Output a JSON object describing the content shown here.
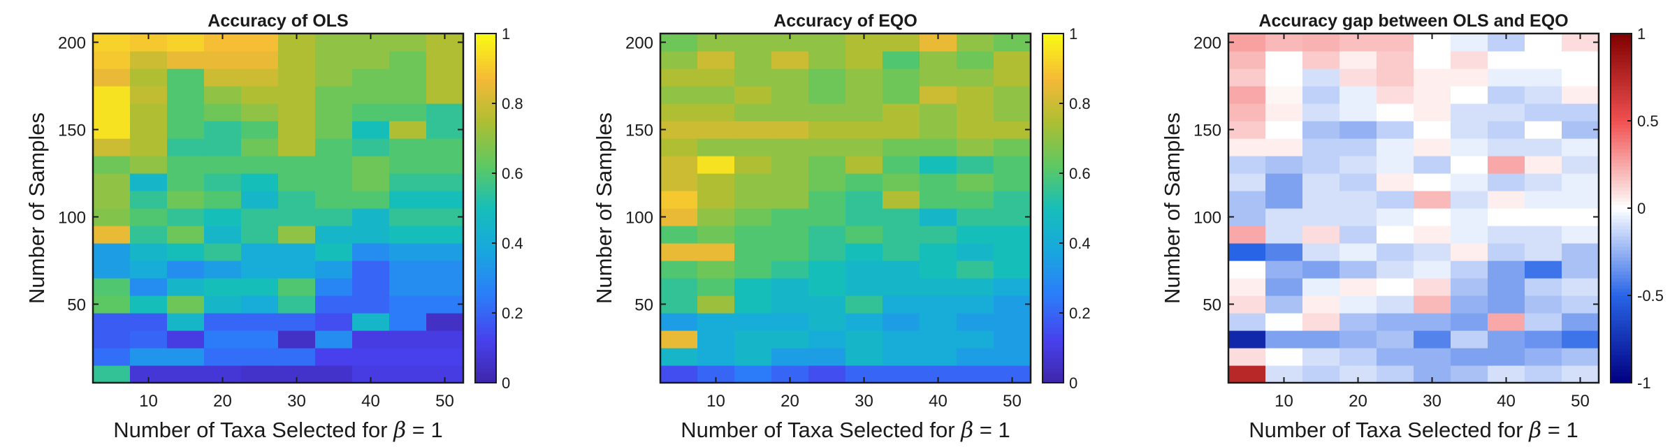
{
  "chart_data": [
    {
      "type": "heatmap",
      "title": "Accuracy of OLS",
      "xlabel": "Number of Taxa Selected for",
      "xlabel_symbol": "β",
      "xlabel_suffix": " = 1",
      "ylabel": "Number of Samples",
      "x_ticks": [
        "10",
        "20",
        "30",
        "40",
        "50"
      ],
      "y_ticks": [
        "50",
        "100",
        "150",
        "200"
      ],
      "colorbar_ticks": [
        "0",
        "0.2",
        "0.4",
        "0.6",
        "0.8",
        "1"
      ],
      "colormap": "parula",
      "clim": [
        0,
        1
      ],
      "x_centers": [
        5,
        10,
        15,
        20,
        25,
        30,
        35,
        40,
        45,
        50
      ],
      "y_centers": [
        10,
        20,
        30,
        40,
        50,
        60,
        70,
        80,
        90,
        100,
        110,
        120,
        130,
        140,
        150,
        160,
        170,
        180,
        190,
        200
      ],
      "grid": false,
      "values": [
        [
          0.55,
          0.08,
          0.08,
          0.08,
          0.06,
          0.06,
          0.06,
          0.1,
          0.1,
          0.1
        ],
        [
          0.22,
          0.32,
          0.32,
          0.22,
          0.22,
          0.22,
          0.12,
          0.12,
          0.12,
          0.12
        ],
        [
          0.18,
          0.2,
          0.1,
          0.25,
          0.25,
          0.05,
          0.3,
          0.1,
          0.1,
          0.1
        ],
        [
          0.18,
          0.18,
          0.45,
          0.2,
          0.2,
          0.2,
          0.15,
          0.45,
          0.25,
          0.05
        ],
        [
          0.62,
          0.5,
          0.65,
          0.45,
          0.4,
          0.55,
          0.2,
          0.2,
          0.25,
          0.25
        ],
        [
          0.6,
          0.3,
          0.45,
          0.5,
          0.5,
          0.6,
          0.28,
          0.2,
          0.3,
          0.3
        ],
        [
          0.35,
          0.4,
          0.3,
          0.35,
          0.4,
          0.4,
          0.35,
          0.2,
          0.3,
          0.3
        ],
        [
          0.35,
          0.45,
          0.5,
          0.55,
          0.4,
          0.4,
          0.5,
          0.3,
          0.35,
          0.35
        ],
        [
          0.85,
          0.55,
          0.65,
          0.45,
          0.55,
          0.7,
          0.45,
          0.45,
          0.5,
          0.5
        ],
        [
          0.68,
          0.6,
          0.55,
          0.5,
          0.55,
          0.55,
          0.55,
          0.45,
          0.55,
          0.55
        ],
        [
          0.7,
          0.55,
          0.65,
          0.6,
          0.45,
          0.55,
          0.6,
          0.6,
          0.5,
          0.5
        ],
        [
          0.7,
          0.45,
          0.6,
          0.55,
          0.5,
          0.6,
          0.6,
          0.65,
          0.55,
          0.55
        ],
        [
          0.65,
          0.7,
          0.6,
          0.6,
          0.6,
          0.6,
          0.6,
          0.65,
          0.6,
          0.6
        ],
        [
          0.8,
          0.75,
          0.55,
          0.55,
          0.65,
          0.75,
          0.6,
          0.55,
          0.6,
          0.6
        ],
        [
          0.95,
          0.75,
          0.6,
          0.55,
          0.6,
          0.75,
          0.65,
          0.5,
          0.75,
          0.55
        ],
        [
          0.95,
          0.75,
          0.6,
          0.65,
          0.7,
          0.75,
          0.65,
          0.6,
          0.6,
          0.55
        ],
        [
          0.95,
          0.78,
          0.6,
          0.7,
          0.75,
          0.75,
          0.65,
          0.65,
          0.65,
          0.75
        ],
        [
          0.85,
          0.75,
          0.6,
          0.8,
          0.8,
          0.75,
          0.7,
          0.65,
          0.65,
          0.75
        ],
        [
          0.9,
          0.8,
          0.85,
          0.85,
          0.85,
          0.75,
          0.7,
          0.7,
          0.65,
          0.75
        ],
        [
          0.92,
          0.9,
          0.92,
          0.88,
          0.88,
          0.75,
          0.7,
          0.7,
          0.7,
          0.75
        ]
      ]
    },
    {
      "type": "heatmap",
      "title": "Accuracy of EQO",
      "xlabel": "Number of Taxa Selected for",
      "xlabel_symbol": "β",
      "xlabel_suffix": " = 1",
      "ylabel": "Number of Samples",
      "x_ticks": [
        "10",
        "20",
        "30",
        "40",
        "50"
      ],
      "y_ticks": [
        "50",
        "100",
        "150",
        "200"
      ],
      "colorbar_ticks": [
        "0",
        "0.2",
        "0.4",
        "0.6",
        "0.8",
        "1"
      ],
      "colormap": "parula",
      "clim": [
        0,
        1
      ],
      "x_centers": [
        5,
        10,
        15,
        20,
        25,
        30,
        35,
        40,
        45,
        50
      ],
      "y_centers": [
        10,
        20,
        30,
        40,
        50,
        60,
        70,
        80,
        90,
        100,
        110,
        120,
        130,
        140,
        150,
        160,
        170,
        180,
        190,
        200
      ],
      "grid": false,
      "values": [
        [
          0.15,
          0.2,
          0.25,
          0.2,
          0.15,
          0.2,
          0.2,
          0.2,
          0.2,
          0.2
        ],
        [
          0.45,
          0.4,
          0.45,
          0.35,
          0.35,
          0.45,
          0.4,
          0.4,
          0.35,
          0.35
        ],
        [
          0.85,
          0.4,
          0.45,
          0.45,
          0.4,
          0.45,
          0.4,
          0.4,
          0.4,
          0.35
        ],
        [
          0.35,
          0.4,
          0.4,
          0.4,
          0.45,
          0.4,
          0.35,
          0.4,
          0.35,
          0.35
        ],
        [
          0.55,
          0.72,
          0.5,
          0.45,
          0.45,
          0.55,
          0.4,
          0.4,
          0.4,
          0.35
        ],
        [
          0.55,
          0.6,
          0.5,
          0.45,
          0.5,
          0.45,
          0.45,
          0.45,
          0.45,
          0.4
        ],
        [
          0.6,
          0.65,
          0.6,
          0.55,
          0.5,
          0.45,
          0.45,
          0.5,
          0.55,
          0.5
        ],
        [
          0.85,
          0.85,
          0.6,
          0.6,
          0.55,
          0.5,
          0.55,
          0.5,
          0.45,
          0.5
        ],
        [
          0.6,
          0.65,
          0.6,
          0.6,
          0.55,
          0.6,
          0.55,
          0.55,
          0.5,
          0.5
        ],
        [
          0.85,
          0.7,
          0.65,
          0.6,
          0.6,
          0.55,
          0.55,
          0.45,
          0.55,
          0.55
        ],
        [
          0.9,
          0.75,
          0.7,
          0.7,
          0.6,
          0.55,
          0.75,
          0.6,
          0.6,
          0.55
        ],
        [
          0.8,
          0.75,
          0.7,
          0.7,
          0.65,
          0.6,
          0.65,
          0.6,
          0.65,
          0.6
        ],
        [
          0.8,
          0.95,
          0.75,
          0.7,
          0.65,
          0.75,
          0.6,
          0.5,
          0.55,
          0.6
        ],
        [
          0.75,
          0.7,
          0.7,
          0.7,
          0.7,
          0.7,
          0.65,
          0.65,
          0.7,
          0.65
        ],
        [
          0.8,
          0.8,
          0.8,
          0.8,
          0.75,
          0.75,
          0.75,
          0.7,
          0.75,
          0.75
        ],
        [
          0.75,
          0.75,
          0.7,
          0.7,
          0.7,
          0.7,
          0.75,
          0.7,
          0.75,
          0.7
        ],
        [
          0.7,
          0.7,
          0.75,
          0.7,
          0.65,
          0.7,
          0.65,
          0.8,
          0.75,
          0.7
        ],
        [
          0.75,
          0.75,
          0.7,
          0.7,
          0.65,
          0.7,
          0.65,
          0.7,
          0.7,
          0.75
        ],
        [
          0.7,
          0.8,
          0.7,
          0.8,
          0.7,
          0.75,
          0.6,
          0.7,
          0.65,
          0.75
        ],
        [
          0.65,
          0.7,
          0.7,
          0.7,
          0.7,
          0.75,
          0.75,
          0.85,
          0.7,
          0.65
        ]
      ]
    },
    {
      "type": "heatmap",
      "title": "Accuracy gap between OLS and EQO",
      "xlabel": "Number of Taxa Selected for",
      "xlabel_symbol": "β",
      "xlabel_suffix": " = 1",
      "ylabel": "Number of Samples",
      "x_ticks": [
        "10",
        "20",
        "30",
        "40",
        "50"
      ],
      "y_ticks": [
        "50",
        "100",
        "150",
        "200"
      ],
      "colorbar_ticks": [
        "-1",
        "-0.5",
        "0",
        "0.5",
        "1"
      ],
      "colormap": "blue-white-red",
      "clim": [
        -1,
        1
      ],
      "x_centers": [
        5,
        10,
        15,
        20,
        25,
        30,
        35,
        40,
        45,
        50
      ],
      "y_centers": [
        10,
        20,
        30,
        40,
        50,
        60,
        70,
        80,
        90,
        100,
        110,
        120,
        130,
        140,
        150,
        160,
        170,
        180,
        190,
        200
      ],
      "grid": false,
      "values": [
        [
          0.75,
          -0.1,
          -0.15,
          -0.1,
          -0.15,
          -0.25,
          -0.2,
          -0.1,
          -0.15,
          -0.1
        ],
        [
          0.1,
          0.0,
          -0.1,
          -0.15,
          -0.25,
          -0.25,
          -0.3,
          -0.3,
          -0.25,
          -0.2
        ],
        [
          -0.8,
          -0.3,
          -0.3,
          -0.25,
          -0.2,
          -0.4,
          -0.15,
          -0.3,
          -0.35,
          -0.45
        ],
        [
          -0.15,
          0.0,
          0.1,
          -0.2,
          -0.25,
          -0.25,
          -0.3,
          0.25,
          -0.15,
          -0.3
        ],
        [
          0.1,
          -0.2,
          0.05,
          -0.05,
          -0.1,
          0.2,
          -0.25,
          -0.3,
          -0.2,
          -0.15
        ],
        [
          0.05,
          -0.3,
          -0.05,
          0.05,
          0.0,
          0.1,
          -0.2,
          -0.3,
          -0.15,
          -0.1
        ],
        [
          0.0,
          -0.25,
          -0.3,
          -0.2,
          -0.1,
          -0.05,
          -0.15,
          -0.3,
          -0.45,
          -0.2
        ],
        [
          -0.5,
          -0.4,
          -0.1,
          -0.05,
          -0.15,
          -0.1,
          0.05,
          -0.15,
          -0.1,
          -0.2
        ],
        [
          0.25,
          -0.1,
          0.1,
          -0.15,
          0.0,
          0.05,
          -0.05,
          -0.1,
          -0.1,
          -0.05
        ],
        [
          -0.2,
          -0.1,
          -0.1,
          -0.1,
          -0.05,
          0.0,
          -0.05,
          0.0,
          0.0,
          0.0
        ],
        [
          -0.2,
          -0.3,
          -0.1,
          -0.1,
          -0.15,
          0.2,
          -0.1,
          0.05,
          -0.05,
          -0.05
        ],
        [
          -0.1,
          -0.3,
          -0.1,
          -0.15,
          0.05,
          0.0,
          -0.05,
          -0.15,
          -0.1,
          -0.05
        ],
        [
          -0.15,
          -0.2,
          -0.15,
          -0.1,
          -0.05,
          -0.15,
          0.0,
          0.25,
          0.05,
          -0.1
        ],
        [
          0.05,
          0.05,
          -0.15,
          -0.15,
          -0.05,
          0.05,
          -0.05,
          -0.1,
          -0.1,
          -0.05
        ],
        [
          0.15,
          0.0,
          -0.2,
          -0.25,
          -0.15,
          0.0,
          -0.1,
          -0.15,
          0.0,
          -0.2
        ],
        [
          0.2,
          0.05,
          -0.1,
          -0.05,
          0.0,
          0.05,
          -0.1,
          -0.1,
          -0.15,
          -0.15
        ],
        [
          0.25,
          0.03,
          -0.15,
          -0.05,
          0.1,
          0.05,
          0.0,
          -0.15,
          -0.1,
          0.05
        ],
        [
          0.15,
          0.0,
          -0.1,
          0.1,
          0.15,
          0.05,
          0.05,
          -0.05,
          -0.05,
          0.0
        ],
        [
          0.2,
          0.0,
          0.15,
          0.05,
          0.15,
          0.0,
          0.1,
          0.0,
          0.0,
          0.0
        ],
        [
          0.27,
          0.2,
          0.22,
          0.18,
          0.18,
          0.0,
          -0.05,
          -0.15,
          0.0,
          0.1
        ]
      ]
    }
  ]
}
